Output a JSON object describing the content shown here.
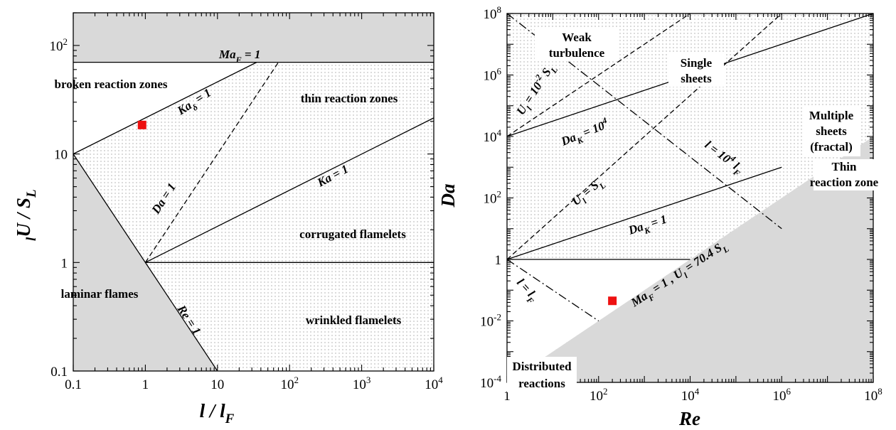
{
  "colors": {
    "shade": "#d9d9d9",
    "stipple": "#6e6e6e",
    "marker": "#ee1111",
    "line": "#000000"
  },
  "chart_data": [
    {
      "type": "scatter",
      "scale": "log-log",
      "xlim": [
        0.1,
        10000
      ],
      "ylim": [
        0.1,
        200
      ],
      "xlabel": {
        "main": "l / l",
        "sub": "F"
      },
      "ylabel": {
        "main": "U / S",
        "sub1": "l",
        "sub2": "L"
      },
      "xticks": [
        {
          "v": 0.1,
          "label": "0.1"
        },
        {
          "v": 1,
          "label": "1"
        },
        {
          "v": 10,
          "label": "10"
        },
        {
          "v": 100,
          "base": "10",
          "exp": "2"
        },
        {
          "v": 1000,
          "base": "10",
          "exp": "3"
        },
        {
          "v": 10000,
          "base": "10",
          "exp": "4"
        }
      ],
      "yticks": [
        {
          "v": 0.1,
          "label": "0.1"
        },
        {
          "v": 1,
          "label": "1"
        },
        {
          "v": 10,
          "label": "10"
        },
        {
          "v": 100,
          "base": "10",
          "exp": "2"
        }
      ],
      "regions": {
        "broken": "broken reaction zones",
        "thin": "thin reaction zones",
        "corrugated": "corrugated flamelets",
        "laminar": "laminar flames",
        "wrinkled": "wrinkled flamelets"
      },
      "line_labels": {
        "maf": {
          "main": "Ma",
          "sub": "F",
          "rest": " = 1"
        },
        "kad": {
          "main": "Ka",
          "sub": "δ",
          "rest": " = 1"
        },
        "ka": "Ka = 1",
        "da": "Da = 1",
        "re": "Re = 1"
      },
      "lines": [
        {
          "name": "Ma_F = 1",
          "style": "solid",
          "x": [
            0.1,
            10000
          ],
          "y": [
            70,
            70
          ]
        },
        {
          "name": "Ka_δ = 1",
          "style": "solid",
          "x": [
            0.1,
            35
          ],
          "y": [
            10,
            70
          ]
        },
        {
          "name": "Ka = 1",
          "style": "solid",
          "x": [
            1,
            10000
          ],
          "y": [
            1,
            21.5
          ]
        },
        {
          "name": "Da = 1",
          "style": "dashed",
          "x": [
            1,
            70
          ],
          "y": [
            1,
            70
          ]
        },
        {
          "name": "Re = 1",
          "style": "solid",
          "x": [
            0.1,
            10
          ],
          "y": [
            10,
            0.1
          ]
        },
        {
          "name": "",
          "style": "solid",
          "x": [
            1,
            10000
          ],
          "y": [
            1,
            1
          ]
        }
      ],
      "points": [
        {
          "x": 0.9,
          "y": 18.5
        }
      ]
    },
    {
      "type": "scatter",
      "scale": "log-log",
      "xlim": [
        1,
        100000000
      ],
      "ylim": [
        0.0001,
        100000000
      ],
      "xlabel": "Re",
      "ylabel": "Da",
      "xticks": [
        {
          "v": 1,
          "label": "1"
        },
        {
          "v": 100,
          "base": "10",
          "exp": "2"
        },
        {
          "v": 10000,
          "base": "10",
          "exp": "4"
        },
        {
          "v": 1000000,
          "base": "10",
          "exp": "6"
        },
        {
          "v": 100000000,
          "base": "10",
          "exp": "8"
        }
      ],
      "yticks": [
        {
          "v": 0.0001,
          "base": "10",
          "exp": "-4"
        },
        {
          "v": 0.01,
          "base": "10",
          "exp": "-2"
        },
        {
          "v": 1,
          "label": "1"
        },
        {
          "v": 100,
          "base": "10",
          "exp": "2"
        },
        {
          "v": 10000,
          "base": "10",
          "exp": "4"
        },
        {
          "v": 1000000,
          "base": "10",
          "exp": "6"
        },
        {
          "v": 100000000,
          "base": "10",
          "exp": "8"
        }
      ],
      "regions": {
        "weak1": "Weak",
        "weak2": "turbulence",
        "single1": "Single",
        "single2": "sheets",
        "multi1": "Multiple",
        "multi2": "sheets",
        "multi3": "(fractal)",
        "thin1": "Thin",
        "thin2": "reaction zone",
        "dist1": "Distributed",
        "dist2": "reactions"
      },
      "line_labels": {
        "u2": {
          "a": "U",
          "asub": "l",
          "b": " = 10",
          "bsup": "-2",
          "c": " S",
          "csub": "L"
        },
        "u1": {
          "a": "U",
          "asub": "l",
          "b": " = S",
          "bsub": "L"
        },
        "dak4": {
          "a": "Da",
          "asub": "K",
          "b": " = 10",
          "bsup": "4"
        },
        "dak1": {
          "a": "Da",
          "asub": "K",
          "b": " = 1"
        },
        "l4": {
          "a": "l = 10",
          "asup": "4",
          "b": " l",
          "bsub": "F"
        },
        "l1": {
          "a": "l = l",
          "asub": "F"
        },
        "maf": {
          "a": "Ma",
          "asub": "F",
          "b": " = 1 , U",
          "bsub": "l",
          "c": " = 70.4 S",
          "csub": "L"
        }
      },
      "lines": [
        {
          "name": "Da_K = 10^4",
          "style": "solid",
          "x": [
            1,
            100000000
          ],
          "y": [
            10000,
            100000000
          ]
        },
        {
          "name": "Da_K = 1",
          "style": "solid",
          "x": [
            1,
            1000000
          ],
          "y": [
            1,
            1000
          ]
        },
        {
          "name": "U_l = 10^-2 S_L",
          "style": "dashed",
          "x": [
            1,
            10000
          ],
          "y": [
            10000,
            100000000
          ]
        },
        {
          "name": "U_l = S_L",
          "style": "dashed",
          "x": [
            1,
            1000000
          ],
          "y": [
            1,
            100000000
          ]
        },
        {
          "name": "l = 10^4 l_F",
          "style": "dashdot",
          "x": [
            1,
            1000000
          ],
          "y": [
            100000000,
            10
          ]
        },
        {
          "name": "l = l_F",
          "style": "dashdot",
          "x": [
            1,
            100
          ],
          "y": [
            1,
            0.01
          ]
        },
        {
          "name": "",
          "style": "solid",
          "x": [
            1,
            10000
          ],
          "y": [
            1,
            1
          ]
        },
        {
          "name": "Ma_F = 1 , U_l = 70.4 S_L",
          "style": "boundary",
          "x": [
            1,
            100000000
          ],
          "y": [
            0.0001,
            10000
          ]
        }
      ],
      "points": [
        {
          "x": 200,
          "y": 0.045
        }
      ]
    }
  ]
}
